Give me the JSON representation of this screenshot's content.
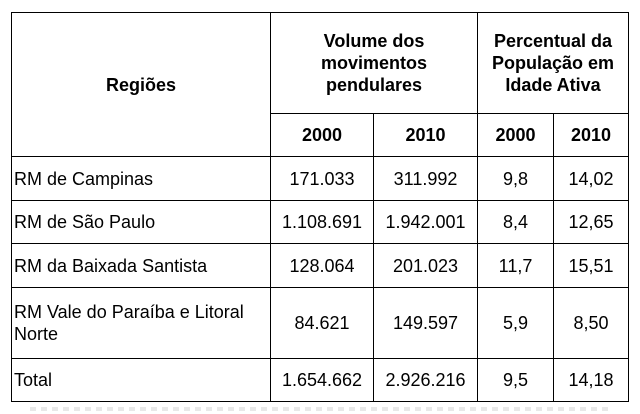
{
  "table": {
    "header": {
      "regions": "Regiões",
      "volume": "Volume dos movimentos pendulares",
      "percent": "Percentual da População em Idade Ativa",
      "years": [
        "2000",
        "2010",
        "2000",
        "2010"
      ]
    },
    "rows": [
      {
        "region": "RM de Campinas",
        "vol2000": "171.033",
        "vol2010": "311.992",
        "pct2000": "9,8",
        "pct2010": "14,02"
      },
      {
        "region": "RM de São Paulo",
        "vol2000": "1.108.691",
        "vol2010": "1.942.001",
        "pct2000": "8,4",
        "pct2010": "12,65"
      },
      {
        "region": "RM da Baixada Santista",
        "vol2000": "128.064",
        "vol2010": "201.023",
        "pct2000": "11,7",
        "pct2010": "15,51"
      },
      {
        "region": "RM Vale do Paraíba e Litoral Norte",
        "vol2000": "84.621",
        "vol2010": "149.597",
        "pct2000": "5,9",
        "pct2010": "8,50"
      },
      {
        "region": "Total",
        "vol2000": "1.654.662",
        "vol2010": "2.926.216",
        "pct2000": "9,5",
        "pct2010": "14,18"
      }
    ]
  }
}
